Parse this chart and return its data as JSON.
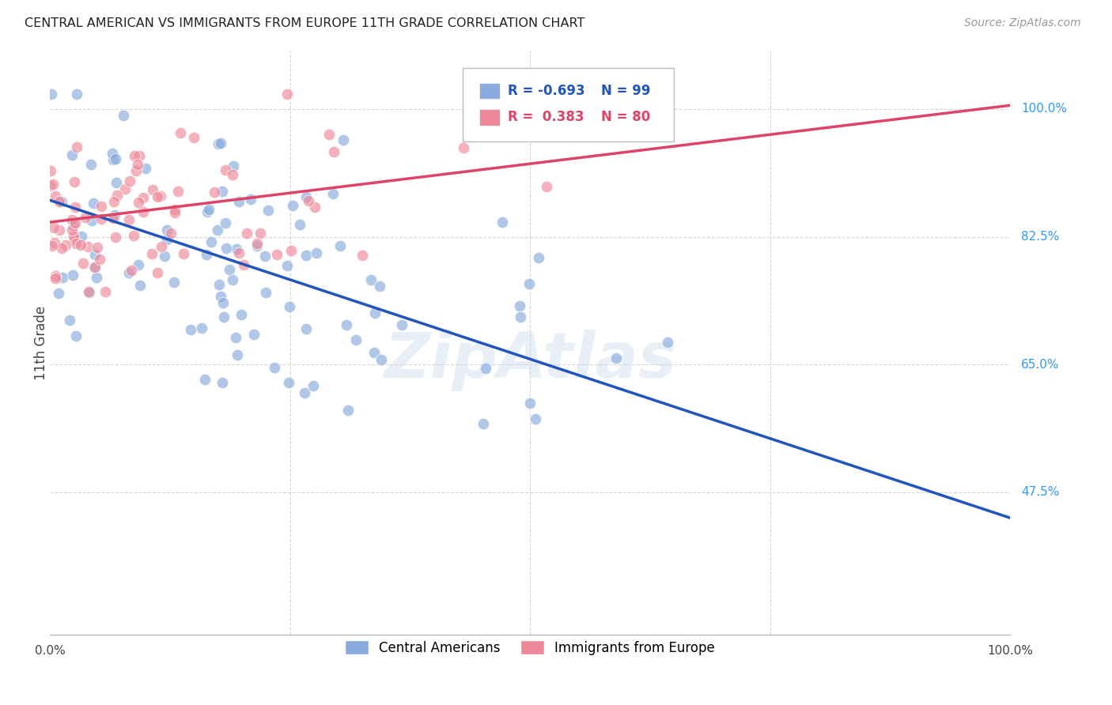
{
  "title": "CENTRAL AMERICAN VS IMMIGRANTS FROM EUROPE 11TH GRADE CORRELATION CHART",
  "source": "Source: ZipAtlas.com",
  "ylabel": "11th Grade",
  "ytick_labels": [
    "47.5%",
    "65.0%",
    "82.5%",
    "100.0%"
  ],
  "ytick_values": [
    0.475,
    0.65,
    0.825,
    1.0
  ],
  "blue_R": -0.693,
  "blue_N": 99,
  "pink_R": 0.383,
  "pink_N": 80,
  "blue_color": "#88AADD",
  "pink_color": "#EE8899",
  "blue_line_color": "#2255BB",
  "pink_line_color": "#DD4466",
  "legend_blue_label": "Central Americans",
  "legend_pink_label": "Immigrants from Europe",
  "watermark": "ZipAtlas",
  "xlim": [
    0.0,
    1.0
  ],
  "ylim": [
    0.28,
    1.08
  ],
  "background_color": "#FFFFFF",
  "grid_color": "#CCCCCC",
  "blue_line_start_y": 0.875,
  "blue_line_end_y": 0.44,
  "pink_line_start_y": 0.845,
  "pink_line_end_y": 1.005
}
